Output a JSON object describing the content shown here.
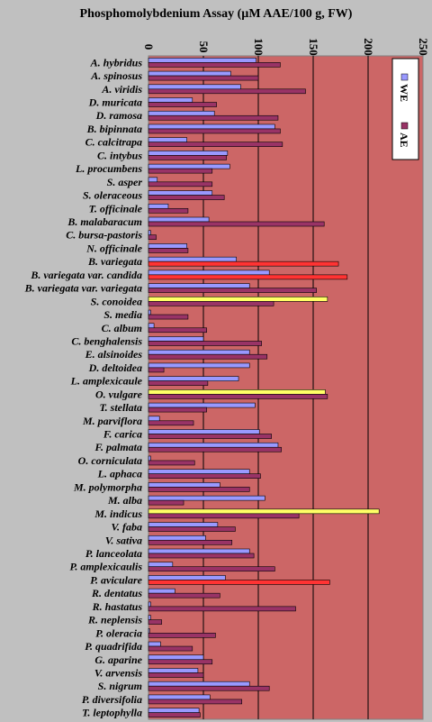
{
  "chart_data": {
    "type": "bar",
    "orientation": "horizontal",
    "title": "Phosphomolybdenium Assay (µM AAE/100 g, FW)",
    "xlim": [
      0,
      250
    ],
    "xticks": [
      "0",
      "50",
      "100",
      "150",
      "200",
      "250"
    ],
    "legend_position": "top-right",
    "colors": {
      "WE": "#9999ff",
      "AE": "#993366",
      "highlight_yellow": "#ffff66",
      "highlight_red": "#ff3333",
      "plot_bg": "#cc6666",
      "page_bg": "#c0c0c0"
    },
    "categories": [
      "A. hybridus",
      "A. spinosus",
      "A. viridis",
      "D. muricata",
      "D. ramosa",
      "B. bipinnata",
      "C. calcitrapa",
      "C. intybus",
      "L. procumbens",
      "S. asper",
      "S. oleraceous",
      "T. officinale",
      "B. malabaracum",
      "C. bursa-pastoris",
      "N. officinale",
      "B. variegata",
      "B. variegata var. candida",
      "B. variegata var. variegata",
      "S. conoidea",
      "S. media",
      "C. album",
      "C. benghalensis",
      "E. alsinoides",
      "D. deltoidea",
      "L. amplexicaule",
      "O. vulgare",
      "T. stellata",
      "M. parviflora",
      "F. carica",
      "F. palmata",
      "O. corniculata",
      "L. aphaca",
      "M. polymorpha",
      "M. alba",
      "M. indicus",
      "V. faba",
      "V. sativa",
      "P. lanceolata",
      "P. amplexicaulis",
      "P. aviculare",
      "R. dentatus",
      "R. hastatus",
      "R. neplensis",
      "P. oleracia",
      "P. quadrifida",
      "G. aparine",
      "V. arvensis",
      "S. nigrum",
      "P. diversifolia",
      "T. leptophylla"
    ],
    "series": [
      {
        "name": "WE",
        "values": [
          98,
          75,
          84,
          40,
          60,
          115,
          35,
          72,
          74,
          8,
          58,
          18,
          55,
          2,
          35,
          80,
          110,
          92,
          163,
          2,
          5,
          50,
          92,
          92,
          82,
          161,
          97,
          10,
          101,
          118,
          2,
          92,
          65,
          106,
          210,
          63,
          52,
          92,
          22,
          70,
          24,
          2,
          2,
          1,
          11,
          50,
          45,
          92,
          56,
          46
        ]
      },
      {
        "name": "AE",
        "values": [
          120,
          100,
          143,
          62,
          118,
          120,
          122,
          71,
          58,
          58,
          69,
          36,
          160,
          7,
          36,
          173,
          181,
          153,
          114,
          36,
          53,
          103,
          108,
          14,
          54,
          163,
          53,
          41,
          112,
          121,
          42,
          102,
          92,
          32,
          137,
          79,
          76,
          96,
          115,
          165,
          65,
          134,
          12,
          61,
          40,
          58,
          50,
          110,
          85,
          47
        ]
      }
    ],
    "highlight_yellow_categories": [
      "S. conoidea",
      "O. vulgare",
      "M. indicus"
    ],
    "highlight_red_categories": [
      "B. variegata",
      "B. variegata var. candida",
      "P. aviculare"
    ]
  }
}
